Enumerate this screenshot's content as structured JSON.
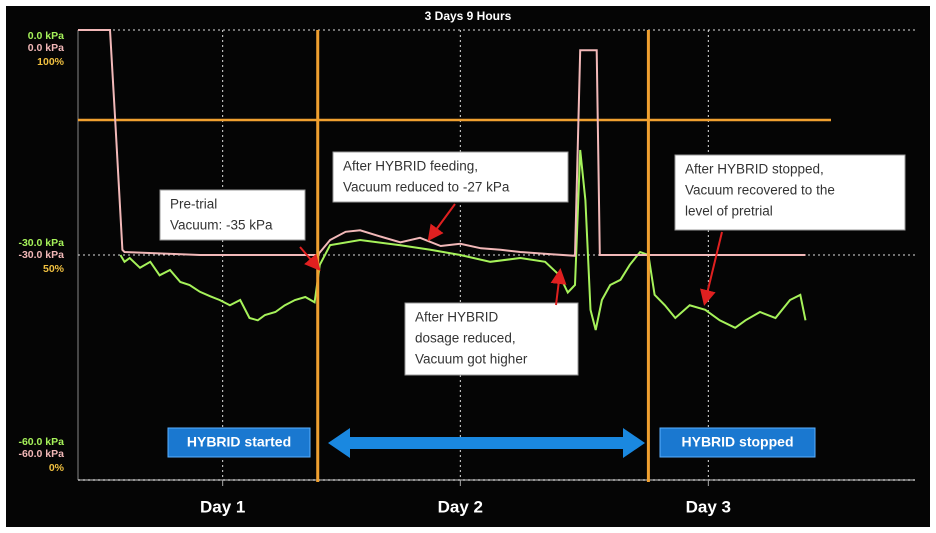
{
  "chart_data": {
    "type": "line",
    "title": "3 Days 9 Hours",
    "xlim": [
      0,
      81
    ],
    "xticks": [
      {
        "value": 14,
        "label": "Day 1"
      },
      {
        "value": 37,
        "label": "Day 2"
      },
      {
        "value": 61,
        "label": "Day 3"
      }
    ],
    "ylim": [
      -60,
      0
    ],
    "yticks": [
      {
        "value": 0,
        "label": "0.0 kPa"
      },
      {
        "value": -30,
        "label": "-30.0 kPa"
      },
      {
        "value": -60,
        "label": "-60.0 kPa"
      }
    ],
    "y2lim": [
      -60,
      0
    ],
    "y2ticks": [
      {
        "value": 0,
        "label": "0.0 kPa"
      },
      {
        "value": -30,
        "label": "-30.0 kPa"
      },
      {
        "value": -60,
        "label": "-60.0 kPa"
      }
    ],
    "y3lim": [
      0,
      100
    ],
    "y3ticks": [
      {
        "value": 100,
        "label": "100%"
      },
      {
        "value": 50,
        "label": "50%"
      },
      {
        "value": 0,
        "label": "0%"
      }
    ],
    "grid": true,
    "series": [
      {
        "color": "#a6f25a",
        "x": [
          4.1,
          4.5,
          5.0,
          6.0,
          7.0,
          7.9,
          8.9,
          9.9,
          10.8,
          11.8,
          12.8,
          13.7,
          14.7,
          15.7,
          16.6,
          17.4,
          18.1,
          19.1,
          20.0,
          21.0,
          22.0,
          22.9,
          23.4,
          24.4,
          27.3,
          31.2,
          34.1,
          37.0,
          39.9,
          42.8,
          45.2,
          46.6,
          47.4,
          48.1,
          48.6,
          49.1,
          49.6,
          50.1,
          50.7,
          51.5,
          52.5,
          53.4,
          54.4,
          55.2,
          55.8,
          56.8,
          57.8,
          59.2,
          60.7,
          62.1,
          63.6,
          64.6,
          66.0,
          67.5,
          68.9,
          69.9,
          70.4
        ],
        "values": [
          -30,
          -30.9,
          -30.4,
          -31.7,
          -30.9,
          -32.7,
          -32,
          -33.6,
          -34,
          -34.9,
          -35.5,
          -36,
          -36.7,
          -36,
          -38.4,
          -38.7,
          -38,
          -37.6,
          -36.7,
          -36,
          -35.6,
          -36.3,
          -31.3,
          -28.7,
          -28,
          -28.7,
          -29.3,
          -30,
          -30.9,
          -30.4,
          -30.9,
          -32.7,
          -35,
          -34,
          -16,
          -22.7,
          -37.3,
          -40,
          -36,
          -34,
          -33.3,
          -31.3,
          -29.6,
          -30,
          -35.3,
          -36.7,
          -38.4,
          -36.7,
          -37.3,
          -38.7,
          -39.7,
          -38.7,
          -37.6,
          -38.4,
          -36,
          -35.3,
          -38.7
        ]
      },
      {
        "color": "#f2b8b8",
        "axis": "y2",
        "x": [
          0,
          3.1,
          3.6,
          4.3,
          4.5,
          11.8,
          23.2,
          24.4,
          25.9,
          27.3,
          29.2,
          31.2,
          33.1,
          35.1,
          37.0,
          39.0,
          40.9,
          42.8,
          45.8,
          48.1,
          48.6,
          50.2,
          50.5,
          60.2,
          70.4
        ],
        "values": [
          0,
          0,
          -12,
          -29.3,
          -29.6,
          -30,
          -30,
          -28,
          -26.9,
          -26.7,
          -27.5,
          -28.3,
          -27.7,
          -28.8,
          -28.5,
          -29.1,
          -29.3,
          -29.6,
          -29.9,
          -30.1,
          -2.7,
          -2.7,
          -30,
          -30,
          -30
        ]
      }
    ],
    "reference_lines": {
      "color": "#f0a030",
      "x": [
        23.2,
        55.2
      ],
      "y": [
        -12
      ]
    },
    "annotations": [
      {
        "lines": [
          "Pre-trial",
          "Vacuum: -35 kPa"
        ]
      },
      {
        "lines": [
          "After HYBRID feeding,",
          "Vacuum reduced to -27 kPa"
        ]
      },
      {
        "lines": [
          "After HYBRID stopped,",
          "Vacuum recovered to the",
          "level of pretrial"
        ]
      },
      {
        "lines": [
          "After HYBRID",
          "dosage reduced,",
          "Vacuum got higher"
        ]
      }
    ],
    "banners": [
      "HYBRID started",
      "HYBRID stopped"
    ]
  }
}
